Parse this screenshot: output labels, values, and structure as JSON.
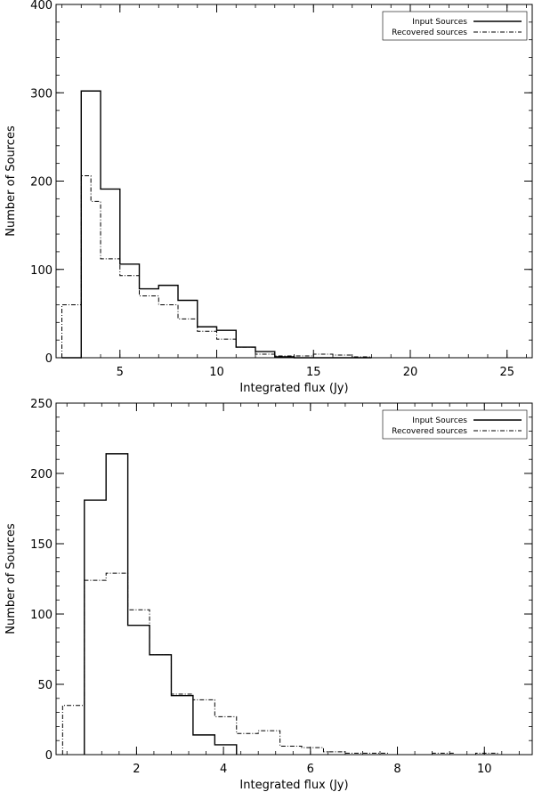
{
  "chart_data": [
    {
      "type": "histogram",
      "xlabel": "Integrated flux (Jy)",
      "ylabel": "Number of Sources",
      "xlim": [
        1.7,
        26.3
      ],
      "ylim": [
        0,
        400
      ],
      "xticks": [
        5,
        10,
        15,
        20,
        25
      ],
      "yticks": [
        0,
        100,
        200,
        300,
        400
      ],
      "legend_position": "top-right",
      "series": [
        {
          "name": "Input Sources",
          "style": "solid",
          "bin_edges": [
            2,
            3,
            4,
            5,
            6,
            7,
            8,
            9,
            10,
            11,
            12,
            13,
            14,
            15,
            16,
            17,
            18
          ],
          "counts": [
            0,
            302,
            191,
            106,
            78,
            82,
            65,
            35,
            31,
            12,
            7,
            1,
            0,
            0,
            0,
            0
          ]
        },
        {
          "name": "Recovered sources",
          "style": "dash-dot",
          "bin_edges": [
            2,
            3,
            3.5,
            4,
            5,
            6,
            7,
            8,
            9,
            10,
            11,
            12,
            13,
            14,
            15,
            16,
            17,
            18
          ],
          "counts": [
            60,
            206,
            177,
            112,
            93,
            70,
            60,
            44,
            30,
            21,
            12,
            4,
            2,
            2,
            4,
            3,
            1
          ]
        }
      ]
    },
    {
      "type": "histogram",
      "xlabel": "Integrated flux (Jy)",
      "ylabel": "Number of Sources",
      "xlim": [
        0.15,
        11.1
      ],
      "ylim": [
        0,
        250
      ],
      "xticks": [
        2,
        4,
        6,
        8,
        10
      ],
      "yticks": [
        0,
        50,
        100,
        150,
        200,
        250
      ],
      "legend_position": "top-right",
      "series": [
        {
          "name": "Input Sources",
          "style": "solid",
          "bin_edges": [
            0.8,
            1.3,
            1.8,
            2.3,
            2.8,
            3.3,
            3.8,
            4.3
          ],
          "counts": [
            181,
            214,
            92,
            71,
            42,
            14,
            7
          ]
        },
        {
          "name": "Recovered sources",
          "style": "dash-dot",
          "bin_edges": [
            0.3,
            0.8,
            1.3,
            1.8,
            2.3,
            2.8,
            3.3,
            3.8,
            4.3,
            4.8,
            5.3,
            5.8,
            6.3,
            6.8,
            7.3,
            7.8,
            8.3,
            8.8,
            9.3,
            9.8,
            10.3
          ],
          "counts": [
            35,
            124,
            129,
            103,
            71,
            43,
            39,
            27,
            15,
            17,
            6,
            5,
            2,
            1,
            1,
            0,
            0,
            1,
            0,
            1
          ]
        }
      ]
    }
  ]
}
